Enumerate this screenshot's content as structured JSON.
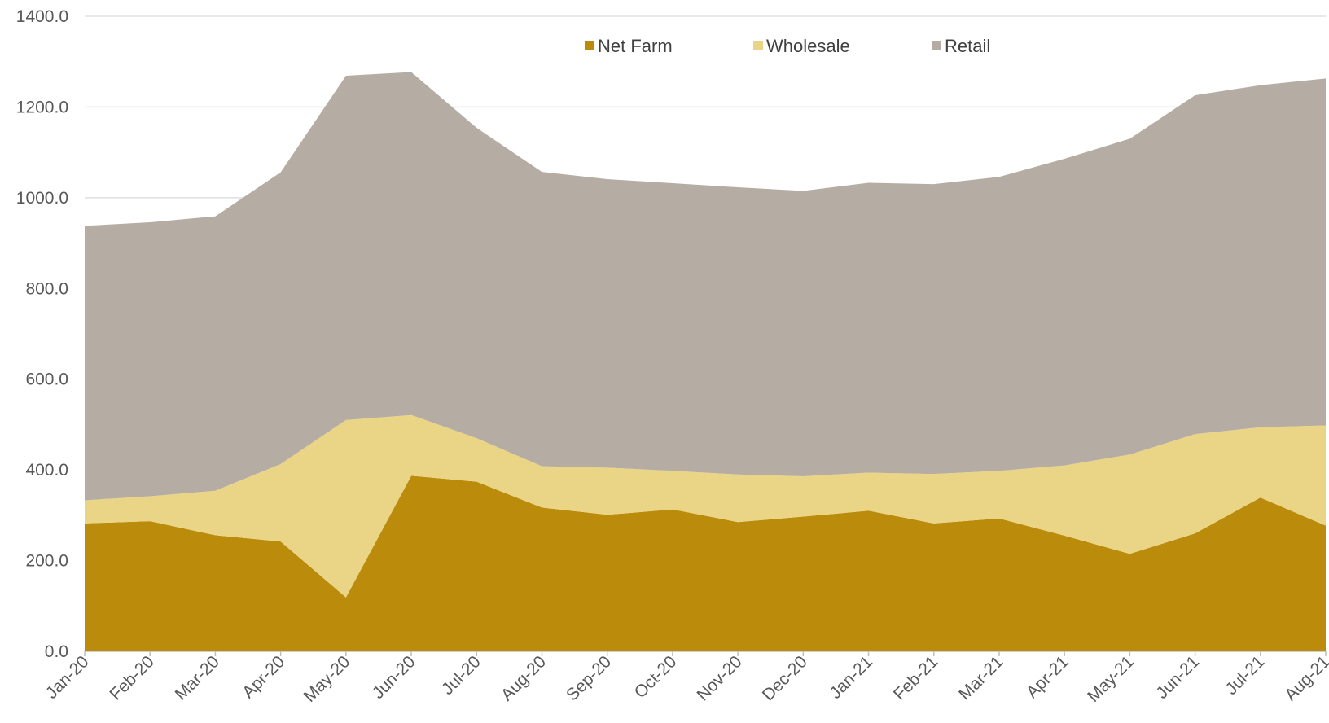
{
  "chart_data": {
    "type": "area",
    "stacked": true,
    "title": "",
    "xlabel": "",
    "ylabel": "",
    "ylim": [
      0,
      1400
    ],
    "yticks": [
      0,
      200,
      400,
      600,
      800,
      1000,
      1200,
      1400
    ],
    "ytick_labels": [
      "0.0",
      "200.0",
      "400.0",
      "600.0",
      "800.0",
      "1000.0",
      "1200.0",
      "1400.0"
    ],
    "grid": "horizontal",
    "legend_position": "top-center",
    "categories": [
      "Jan-20",
      "Feb-20",
      "Mar-20",
      "Apr-20",
      "May-20",
      "Jun-20",
      "Jul-20",
      "Aug-20",
      "Sep-20",
      "Oct-20",
      "Nov-20",
      "Dec-20",
      "Jan-21",
      "Feb-21",
      "Mar-21",
      "Apr-21",
      "May-21",
      "Jun-21",
      "Jul-21",
      "Aug-21"
    ],
    "series": [
      {
        "name": "Net Farm",
        "color": "#bb8c0b",
        "values": [
          282,
          287,
          256,
          242,
          119,
          387,
          374,
          317,
          301,
          313,
          285,
          297,
          310,
          282,
          293,
          255,
          215,
          260,
          339,
          277
        ]
      },
      {
        "name": "Wholesale",
        "color": "#ead486",
        "values": [
          51,
          55,
          98,
          171,
          391,
          134,
          96,
          91,
          104,
          85,
          105,
          89,
          84,
          109,
          105,
          155,
          219,
          219,
          155,
          221
        ]
      },
      {
        "name": "Retail",
        "color": "#b5ada3",
        "values": [
          605,
          604,
          605,
          643,
          759,
          756,
          684,
          649,
          636,
          634,
          633,
          629,
          639,
          639,
          648,
          676,
          696,
          747,
          754,
          765
        ]
      }
    ]
  }
}
